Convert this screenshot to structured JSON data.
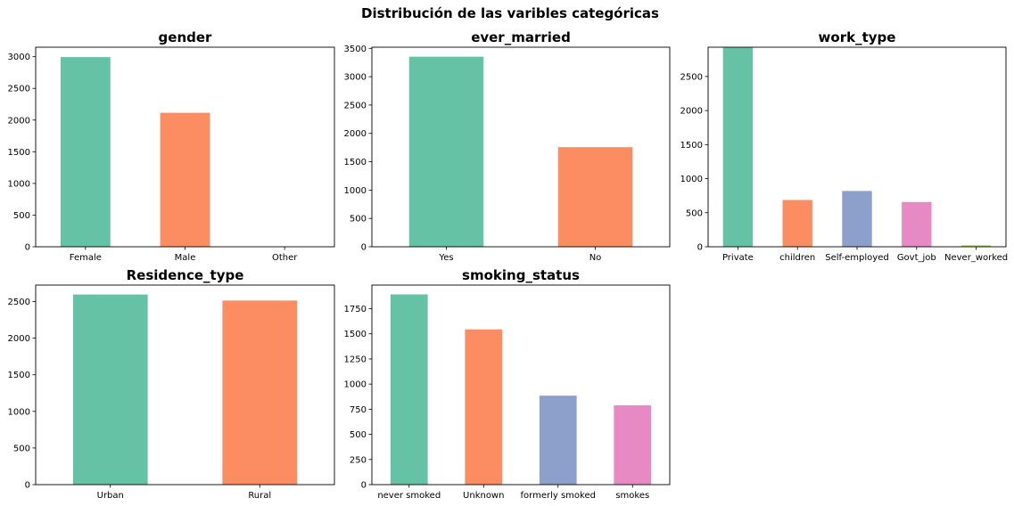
{
  "figure": {
    "suptitle": "Distribución de las varibles categóricas"
  },
  "chart_data": [
    {
      "type": "bar",
      "title": "gender",
      "categories": [
        "Female",
        "Male",
        "Other"
      ],
      "values": [
        2994,
        2115,
        1
      ],
      "ylim": [
        0,
        3150
      ],
      "yticks": [
        0,
        500,
        1000,
        1500,
        2000,
        2500,
        3000
      ],
      "colors": [
        "#66c2a5",
        "#fc8d62",
        "#8da0cb"
      ],
      "grid": false
    },
    {
      "type": "bar",
      "title": "ever_married",
      "categories": [
        "Yes",
        "No"
      ],
      "values": [
        3353,
        1757
      ],
      "ylim": [
        0,
        3520
      ],
      "yticks": [
        0,
        500,
        1000,
        1500,
        2000,
        2500,
        3000,
        3500
      ],
      "colors": [
        "#66c2a5",
        "#fc8d62"
      ],
      "grid": false
    },
    {
      "type": "bar",
      "title": "work_type",
      "categories": [
        "Private",
        "children",
        "Self-employed",
        "Govt_job",
        "Never_worked"
      ],
      "values": [
        2925,
        687,
        819,
        657,
        22
      ],
      "ylim": [
        0,
        2930
      ],
      "yticks": [
        0,
        500,
        1000,
        1500,
        2000,
        2500
      ],
      "colors": [
        "#66c2a5",
        "#fc8d62",
        "#8da0cb",
        "#e78ac3",
        "#a6d854"
      ],
      "grid": false
    },
    {
      "type": "bar",
      "title": "Residence_type",
      "categories": [
        "Urban",
        "Rural"
      ],
      "values": [
        2596,
        2514
      ],
      "ylim": [
        0,
        2725
      ],
      "yticks": [
        0,
        500,
        1000,
        1500,
        2000,
        2500
      ],
      "colors": [
        "#66c2a5",
        "#fc8d62"
      ],
      "grid": false
    },
    {
      "type": "bar",
      "title": "smoking_status",
      "categories": [
        "never smoked",
        "Unknown",
        "formerly smoked",
        "smokes"
      ],
      "values": [
        1892,
        1544,
        885,
        789
      ],
      "ylim": [
        0,
        1985
      ],
      "yticks": [
        0,
        250,
        500,
        750,
        1000,
        1250,
        1500,
        1750
      ],
      "colors": [
        "#66c2a5",
        "#fc8d62",
        "#8da0cb",
        "#e78ac3"
      ],
      "grid": false
    }
  ]
}
